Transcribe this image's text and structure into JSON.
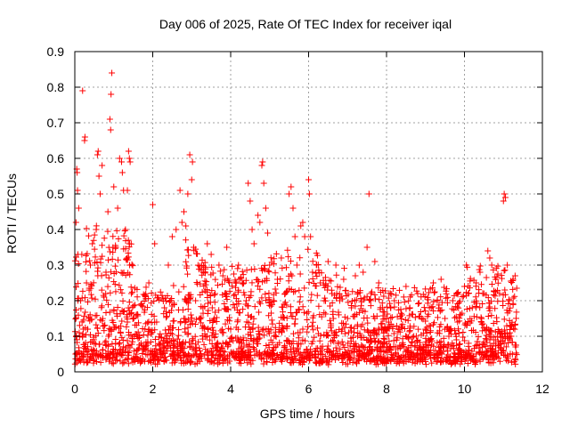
{
  "chart_data": {
    "type": "scatter",
    "title": "Day 006 of 2025, Rate Of TEC Index for receiver iqal",
    "xlabel": "GPS time / hours",
    "ylabel": "ROTI / TECUs",
    "xlim": [
      0,
      12
    ],
    "ylim": [
      0,
      0.9
    ],
    "xticks": [
      0,
      2,
      4,
      6,
      8,
      10,
      12
    ],
    "xtick_labels": [
      "0",
      "2",
      "4",
      "6",
      "8",
      "10",
      "12"
    ],
    "yticks": [
      0,
      0.1,
      0.2,
      0.3,
      0.4,
      0.5,
      0.6,
      0.7,
      0.8,
      0.9
    ],
    "ytick_labels": [
      "0",
      "0.1",
      "0.2",
      "0.3",
      "0.4",
      "0.5",
      "0.6",
      "0.7",
      "0.8",
      "0.9"
    ],
    "grid": true,
    "marker": "+",
    "color": "#ff0000",
    "series": [
      {
        "name": "ROTI",
        "points": [
          [
            0.02,
            0.05
          ],
          [
            0.03,
            0.42
          ],
          [
            0.05,
            0.57
          ],
          [
            0.06,
            0.56
          ],
          [
            0.07,
            0.51
          ],
          [
            0.08,
            0.33
          ],
          [
            0.1,
            0.46
          ],
          [
            0.12,
            0.1
          ],
          [
            0.15,
            0.2
          ],
          [
            0.18,
            0.33
          ],
          [
            0.2,
            0.79
          ],
          [
            0.22,
            0.12
          ],
          [
            0.25,
            0.65
          ],
          [
            0.26,
            0.66
          ],
          [
            0.3,
            0.25
          ],
          [
            0.35,
            0.15
          ],
          [
            0.4,
            0.3
          ],
          [
            0.45,
            0.36
          ],
          [
            0.5,
            0.08
          ],
          [
            0.55,
            0.4
          ],
          [
            0.58,
            0.61
          ],
          [
            0.6,
            0.62
          ],
          [
            0.62,
            0.55
          ],
          [
            0.65,
            0.5
          ],
          [
            0.7,
            0.58
          ],
          [
            0.75,
            0.21
          ],
          [
            0.8,
            0.28
          ],
          [
            0.85,
            0.45
          ],
          [
            0.9,
            0.71
          ],
          [
            0.92,
            0.68
          ],
          [
            0.93,
            0.78
          ],
          [
            0.95,
            0.84
          ],
          [
            1.0,
            0.52
          ],
          [
            1.05,
            0.35
          ],
          [
            1.1,
            0.46
          ],
          [
            1.15,
            0.6
          ],
          [
            1.2,
            0.59
          ],
          [
            1.22,
            0.56
          ],
          [
            1.25,
            0.51
          ],
          [
            1.3,
            0.4
          ],
          [
            1.35,
            0.51
          ],
          [
            1.38,
            0.62
          ],
          [
            1.4,
            0.6
          ],
          [
            1.42,
            0.59
          ],
          [
            1.45,
            0.22
          ],
          [
            1.5,
            0.15
          ],
          [
            1.6,
            0.1
          ],
          [
            1.7,
            0.08
          ],
          [
            1.8,
            0.12
          ],
          [
            1.9,
            0.25
          ],
          [
            2.0,
            0.47
          ],
          [
            2.05,
            0.36
          ],
          [
            2.1,
            0.14
          ],
          [
            2.2,
            0.08
          ],
          [
            2.3,
            0.18
          ],
          [
            2.4,
            0.3
          ],
          [
            2.5,
            0.38
          ],
          [
            2.6,
            0.4
          ],
          [
            2.7,
            0.51
          ],
          [
            2.75,
            0.42
          ],
          [
            2.8,
            0.45
          ],
          [
            2.85,
            0.41
          ],
          [
            2.9,
            0.5
          ],
          [
            2.95,
            0.61
          ],
          [
            3.0,
            0.54
          ],
          [
            3.02,
            0.59
          ],
          [
            3.05,
            0.35
          ],
          [
            3.1,
            0.2
          ],
          [
            3.2,
            0.15
          ],
          [
            3.3,
            0.28
          ],
          [
            3.4,
            0.36
          ],
          [
            3.5,
            0.33
          ],
          [
            3.6,
            0.22
          ],
          [
            3.7,
            0.3
          ],
          [
            3.8,
            0.27
          ],
          [
            3.9,
            0.35
          ],
          [
            4.0,
            0.12
          ],
          [
            4.1,
            0.18
          ],
          [
            4.2,
            0.3
          ],
          [
            4.3,
            0.25
          ],
          [
            4.4,
            0.2
          ],
          [
            4.45,
            0.53
          ],
          [
            4.5,
            0.48
          ],
          [
            4.55,
            0.4
          ],
          [
            4.6,
            0.36
          ],
          [
            4.7,
            0.44
          ],
          [
            4.75,
            0.42
          ],
          [
            4.8,
            0.58
          ],
          [
            4.82,
            0.59
          ],
          [
            4.85,
            0.53
          ],
          [
            4.9,
            0.46
          ],
          [
            4.95,
            0.39
          ],
          [
            5.0,
            0.3
          ],
          [
            5.1,
            0.2
          ],
          [
            5.2,
            0.26
          ],
          [
            5.3,
            0.32
          ],
          [
            5.4,
            0.22
          ],
          [
            5.5,
            0.5
          ],
          [
            5.55,
            0.52
          ],
          [
            5.6,
            0.46
          ],
          [
            5.65,
            0.38
          ],
          [
            5.7,
            0.3
          ],
          [
            5.8,
            0.41
          ],
          [
            5.85,
            0.42
          ],
          [
            5.9,
            0.38
          ],
          [
            6.0,
            0.54
          ],
          [
            6.02,
            0.5
          ],
          [
            6.05,
            0.38
          ],
          [
            6.1,
            0.28
          ],
          [
            6.2,
            0.3
          ],
          [
            6.3,
            0.25
          ],
          [
            6.4,
            0.2
          ],
          [
            6.5,
            0.31
          ],
          [
            6.6,
            0.22
          ],
          [
            6.7,
            0.3
          ],
          [
            6.8,
            0.2
          ],
          [
            6.9,
            0.26
          ],
          [
            7.0,
            0.15
          ],
          [
            7.1,
            0.18
          ],
          [
            7.2,
            0.27
          ],
          [
            7.3,
            0.3
          ],
          [
            7.4,
            0.28
          ],
          [
            7.5,
            0.35
          ],
          [
            7.55,
            0.5
          ],
          [
            7.6,
            0.22
          ],
          [
            7.7,
            0.31
          ],
          [
            7.8,
            0.25
          ],
          [
            7.9,
            0.18
          ],
          [
            8.0,
            0.15
          ],
          [
            8.1,
            0.22
          ],
          [
            8.2,
            0.2
          ],
          [
            8.3,
            0.12
          ],
          [
            8.4,
            0.16
          ],
          [
            8.5,
            0.24
          ],
          [
            8.6,
            0.18
          ],
          [
            8.7,
            0.1
          ],
          [
            8.8,
            0.22
          ],
          [
            8.9,
            0.15
          ],
          [
            9.0,
            0.12
          ],
          [
            9.1,
            0.18
          ],
          [
            9.2,
            0.25
          ],
          [
            9.3,
            0.2
          ],
          [
            9.4,
            0.26
          ],
          [
            9.5,
            0.15
          ],
          [
            9.6,
            0.1
          ],
          [
            9.7,
            0.2
          ],
          [
            9.8,
            0.22
          ],
          [
            9.9,
            0.16
          ],
          [
            10.0,
            0.24
          ],
          [
            10.05,
            0.3
          ],
          [
            10.1,
            0.22
          ],
          [
            10.2,
            0.18
          ],
          [
            10.3,
            0.25
          ],
          [
            10.4,
            0.28
          ],
          [
            10.5,
            0.22
          ],
          [
            10.6,
            0.34
          ],
          [
            10.65,
            0.32
          ],
          [
            10.7,
            0.3
          ],
          [
            10.8,
            0.26
          ],
          [
            10.9,
            0.22
          ],
          [
            11.0,
            0.48
          ],
          [
            11.02,
            0.5
          ],
          [
            11.05,
            0.49
          ],
          [
            11.1,
            0.3
          ],
          [
            11.15,
            0.2
          ],
          [
            11.2,
            0.1
          ],
          [
            11.25,
            0.26
          ],
          [
            11.3,
            0.27
          ]
        ]
      }
    ]
  }
}
